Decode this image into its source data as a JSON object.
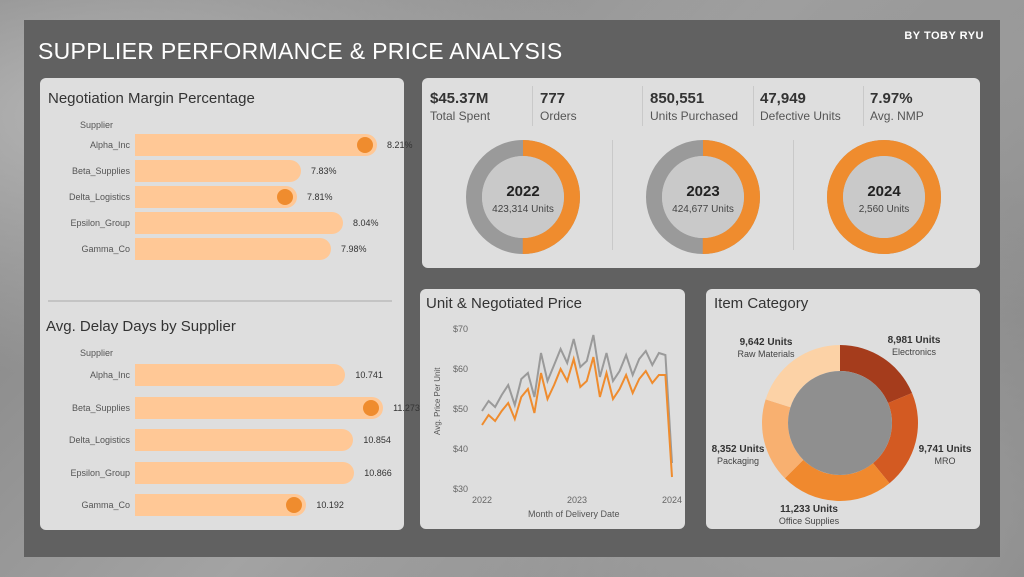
{
  "header": {
    "title": "SUPPLIER PERFORMANCE & PRICE ANALYSIS",
    "author": "BY TOBY RYU"
  },
  "nmp_chart": {
    "title": "Negotiation Margin Percentage",
    "dimension_label": "Supplier",
    "rows": [
      {
        "supplier": "Alpha_Inc",
        "value": 8.21,
        "label": "8.21%",
        "dot": true
      },
      {
        "supplier": "Beta_Supplies",
        "value": 7.83,
        "label": "7.83%",
        "dot": false
      },
      {
        "supplier": "Delta_Logistics",
        "value": 7.81,
        "label": "7.81%",
        "dot": true
      },
      {
        "supplier": "Epsilon_Group",
        "value": 8.04,
        "label": "8.04%",
        "dot": false
      },
      {
        "supplier": "Gamma_Co",
        "value": 7.98,
        "label": "7.98%",
        "dot": false
      }
    ]
  },
  "delay_chart": {
    "title": "Avg. Delay Days by Supplier",
    "dimension_label": "Supplier",
    "rows": [
      {
        "supplier": "Alpha_Inc",
        "value": 10.741,
        "label": "10.741",
        "dot": false
      },
      {
        "supplier": "Beta_Supplies",
        "value": 11.273,
        "label": "11.273",
        "dot": true
      },
      {
        "supplier": "Delta_Logistics",
        "value": 10.854,
        "label": "10.854",
        "dot": false
      },
      {
        "supplier": "Epsilon_Group",
        "value": 10.866,
        "label": "10.866",
        "dot": false
      },
      {
        "supplier": "Gamma_Co",
        "value": 10.192,
        "label": "10.192",
        "dot": true
      }
    ]
  },
  "kpis": [
    {
      "value": "$45.37M",
      "label": "Total Spent"
    },
    {
      "value": "777",
      "label": "Orders"
    },
    {
      "value": "850,551",
      "label": "Units Purchased"
    },
    {
      "value": "47,949",
      "label": "Defective Units"
    },
    {
      "value": "7.97%",
      "label": "Avg. NMP"
    }
  ],
  "year_donuts": [
    {
      "year": "2022",
      "units": "423,314 Units",
      "orange_fraction": 0.5
    },
    {
      "year": "2023",
      "units": "424,677 Units",
      "orange_fraction": 0.5
    },
    {
      "year": "2024",
      "units": "2,560 Units",
      "orange_fraction": 1.0
    }
  ],
  "colors": {
    "orange": "#ef8c2e",
    "light_orange": "#ffc896",
    "gray": "#9a9a9a",
    "dark_gray": "#8f8f8f",
    "cat_electronics": "#a53c1c",
    "cat_mro": "#d35a22",
    "cat_office": "#f0892e",
    "cat_packaging": "#f8b070",
    "cat_raw": "#fcd2a6"
  },
  "chart_data": [
    {
      "type": "line",
      "title": "Unit & Negotiated Price",
      "xlabel": "Month of Delivery Date",
      "ylabel": "Avg. Price Per Unit",
      "x_ticks": [
        "2022",
        "2023",
        "2024"
      ],
      "y_ticks": [
        "$30",
        "$40",
        "$50",
        "$60",
        "$70"
      ],
      "ylim": [
        30,
        70
      ],
      "series": [
        {
          "name": "Unit Price",
          "color": "#9a9a9a",
          "values": [
            49.5,
            52,
            50.5,
            53.5,
            56,
            51,
            57.5,
            59,
            53,
            64,
            57,
            61,
            65,
            61.5,
            67.5,
            60.5,
            62,
            68.5,
            58,
            64,
            57,
            59.5,
            63.5,
            58.5,
            62.5,
            64.5,
            61,
            64,
            63.5,
            36.5
          ]
        },
        {
          "name": "Negotiated Price",
          "color": "#ef8c2e",
          "values": [
            46,
            48.5,
            47,
            49.5,
            51.5,
            47.5,
            53,
            55,
            49,
            59,
            52.5,
            56,
            60,
            57,
            62.5,
            55.5,
            57,
            63,
            53,
            59,
            52.5,
            55,
            58.5,
            54,
            57.5,
            59.5,
            56.5,
            58.5,
            58.5,
            33
          ]
        }
      ]
    },
    {
      "type": "pie",
      "title": "Item Category",
      "slices": [
        {
          "name": "Electronics",
          "value": 8981,
          "label": "8,981 Units",
          "color_key": "cat_electronics"
        },
        {
          "name": "MRO",
          "value": 9741,
          "label": "9,741 Units",
          "color_key": "cat_mro"
        },
        {
          "name": "Office Supplies",
          "value": 11233,
          "label": "11,233 Units",
          "color_key": "cat_office"
        },
        {
          "name": "Packaging",
          "value": 8352,
          "label": "8,352 Units",
          "color_key": "cat_packaging"
        },
        {
          "name": "Raw Materials",
          "value": 9642,
          "label": "9,642 Units",
          "color_key": "cat_raw"
        }
      ]
    }
  ]
}
